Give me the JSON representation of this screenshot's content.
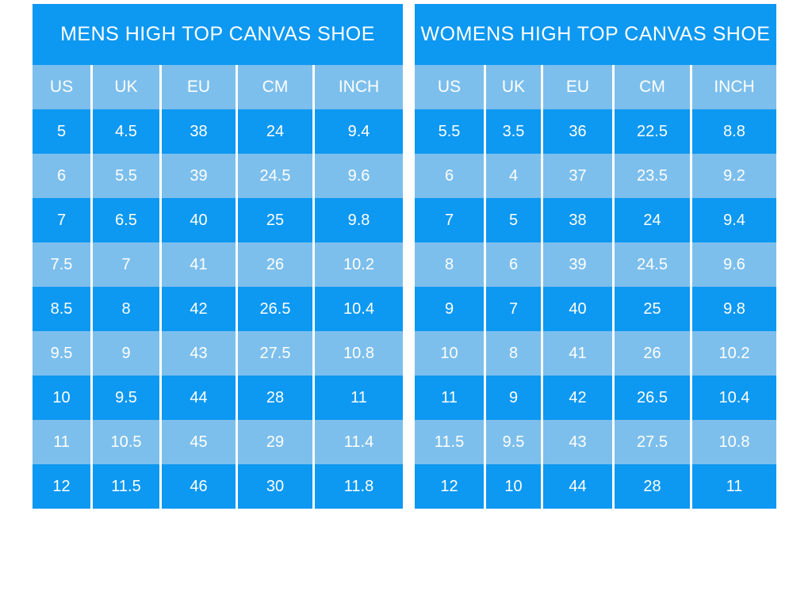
{
  "colors": {
    "dark_blue": "#0d98f2",
    "light_blue": "#7dbfec",
    "text": "#ffffff",
    "background": "#ffffff"
  },
  "chart_data": [
    {
      "type": "table",
      "title": "MENS HIGH TOP CANVAS SHOE",
      "columns": [
        "US",
        "UK",
        "EU",
        "CM",
        "INCH"
      ],
      "rows": [
        [
          5,
          4.5,
          38,
          24,
          9.4
        ],
        [
          6,
          5.5,
          39,
          24.5,
          9.6
        ],
        [
          7,
          6.5,
          40,
          25,
          9.8
        ],
        [
          7.5,
          7,
          41,
          26,
          10.2
        ],
        [
          8.5,
          8,
          42,
          26.5,
          10.4
        ],
        [
          9.5,
          9,
          43,
          27.5,
          10.8
        ],
        [
          10,
          9.5,
          44,
          28,
          11
        ],
        [
          11,
          10.5,
          45,
          29,
          11.4
        ],
        [
          12,
          11.5,
          46,
          30,
          11.8
        ]
      ]
    },
    {
      "type": "table",
      "title": "WOMENS HIGH TOP CANVAS SHOE",
      "columns": [
        "US",
        "UK",
        "EU",
        "CM",
        "INCH"
      ],
      "rows": [
        [
          5.5,
          3.5,
          36,
          22.5,
          8.8
        ],
        [
          6,
          4,
          37,
          23.5,
          9.2
        ],
        [
          7,
          5,
          38,
          24,
          9.4
        ],
        [
          8,
          6,
          39,
          24.5,
          9.6
        ],
        [
          9,
          7,
          40,
          25,
          9.8
        ],
        [
          10,
          8,
          41,
          26,
          10.2
        ],
        [
          11,
          9,
          42,
          26.5,
          10.4
        ],
        [
          11.5,
          9.5,
          43,
          27.5,
          10.8
        ],
        [
          12,
          10,
          44,
          28,
          11
        ]
      ]
    }
  ]
}
